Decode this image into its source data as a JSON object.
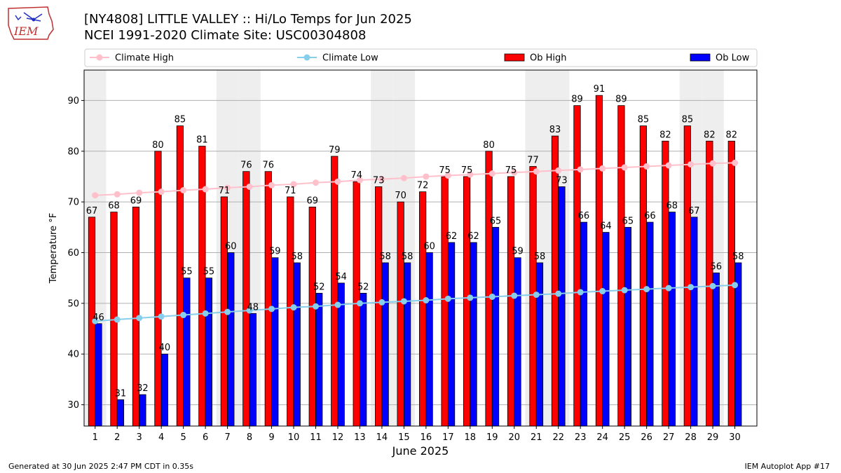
{
  "header": {
    "logo_text": "IEM",
    "title": "[NY4808] LITTLE VALLEY :: Hi/Lo Temps for Jun 2025",
    "subtitle": "NCEI 1991-2020 Climate Site: USC00304808"
  },
  "footer": {
    "generated": "Generated at 30 Jun 2025 2:47 PM CDT in 0.35s",
    "app": "IEM Autoplot App #17"
  },
  "colors": {
    "ob_high": "#ff0000",
    "ob_low": "#0000ff",
    "climate_high": "#ffc0cb",
    "climate_low": "#87ceeb",
    "weekend_shade": "#eeeeee",
    "grid": "#b0b0b0"
  },
  "chart_data": {
    "type": "bar",
    "xlabel": "June 2025",
    "ylabel": "Temperature °F",
    "ylim": [
      25.8,
      96
    ],
    "yticks": [
      30,
      40,
      50,
      60,
      70,
      80,
      90
    ],
    "grid": "horizontal",
    "legend_placement": "top",
    "categories": [
      "1",
      "2",
      "3",
      "4",
      "5",
      "6",
      "7",
      "8",
      "9",
      "10",
      "11",
      "12",
      "13",
      "14",
      "15",
      "16",
      "17",
      "18",
      "19",
      "20",
      "21",
      "22",
      "23",
      "24",
      "25",
      "26",
      "27",
      "28",
      "29",
      "30"
    ],
    "weekend_days": [
      1,
      7,
      8,
      14,
      15,
      21,
      22,
      28,
      29
    ],
    "series": [
      {
        "name": "Ob High",
        "kind": "bar",
        "values": [
          67,
          68,
          69,
          80,
          85,
          81,
          71,
          76,
          76,
          71,
          69,
          79,
          74,
          73,
          70,
          72,
          75,
          75,
          80,
          75,
          77,
          83,
          89,
          91,
          89,
          85,
          82,
          85,
          82,
          82
        ]
      },
      {
        "name": "Ob Low",
        "kind": "bar",
        "values": [
          46,
          31,
          32,
          40,
          55,
          55,
          60,
          48,
          59,
          58,
          52,
          54,
          52,
          58,
          58,
          60,
          62,
          62,
          65,
          59,
          58,
          73,
          66,
          64,
          65,
          66,
          68,
          67,
          56,
          58
        ]
      },
      {
        "name": "Climate High",
        "kind": "line",
        "values": [
          71.3,
          71.5,
          71.8,
          72.0,
          72.3,
          72.5,
          72.8,
          73.0,
          73.3,
          73.5,
          73.8,
          74.0,
          74.3,
          74.5,
          74.7,
          75.0,
          75.2,
          75.4,
          75.6,
          75.8,
          76.0,
          76.2,
          76.4,
          76.6,
          76.8,
          77.0,
          77.2,
          77.4,
          77.6,
          77.7
        ]
      },
      {
        "name": "Climate Low",
        "kind": "line",
        "values": [
          46.5,
          46.8,
          47.1,
          47.4,
          47.7,
          48.0,
          48.3,
          48.6,
          48.9,
          49.2,
          49.4,
          49.7,
          50.0,
          50.2,
          50.4,
          50.6,
          50.9,
          51.1,
          51.3,
          51.5,
          51.7,
          51.9,
          52.2,
          52.4,
          52.6,
          52.8,
          53.0,
          53.2,
          53.4,
          53.6
        ]
      }
    ]
  }
}
